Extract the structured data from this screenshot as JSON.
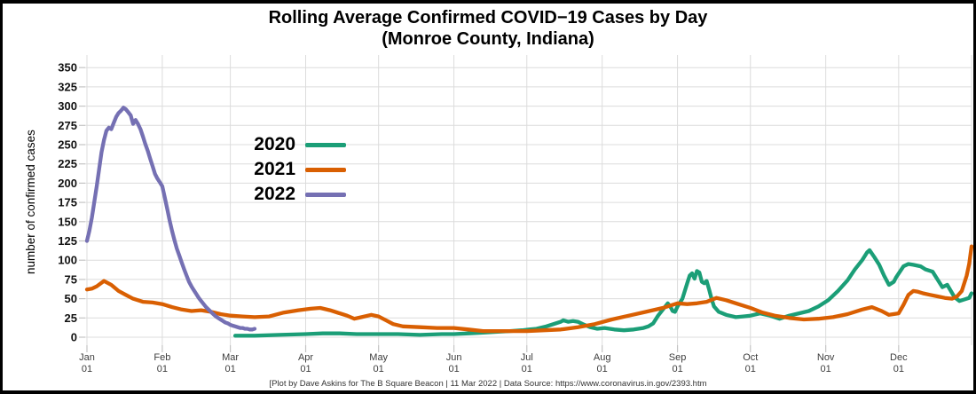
{
  "title": {
    "line1": "Rolling Average Confirmed COVID−19 Cases by Day",
    "line2": "(Monroe County, Indiana)"
  },
  "footer": "[Plot by Dave Askins for The B Square Beacon | 11 Mar 2022 | Data Source: https://www.coronavirus.in.gov/2393.htm",
  "legend": {
    "position": "upper-left-of-plot",
    "entries": [
      "2020",
      "2021",
      "2022"
    ]
  },
  "chart_data": {
    "type": "line",
    "title": "Rolling Average Confirmed COVID−19 Cases by Day (Monroe County, Indiana)",
    "xlabel": "",
    "ylabel": "number of confirmed cases",
    "ylim": [
      0,
      350
    ],
    "yticks": [
      0,
      25,
      50,
      75,
      100,
      125,
      150,
      175,
      200,
      225,
      250,
      275,
      300,
      325,
      350
    ],
    "grid": true,
    "grid_color": "#dcdcdc",
    "tick_color": "#c4c4c4",
    "legend_position": "upper left",
    "x_unit": "day of year",
    "xticks": [
      {
        "label": "Jan",
        "sub": "01",
        "day": 1
      },
      {
        "label": "Feb",
        "sub": "01",
        "day": 32
      },
      {
        "label": "Mar",
        "sub": "01",
        "day": 60
      },
      {
        "label": "Apr",
        "sub": "01",
        "day": 91
      },
      {
        "label": "May",
        "sub": "01",
        "day": 121
      },
      {
        "label": "Jun",
        "sub": "01",
        "day": 152
      },
      {
        "label": "Jul",
        "sub": "01",
        "day": 182
      },
      {
        "label": "Aug",
        "sub": "01",
        "day": 213
      },
      {
        "label": "Sep",
        "sub": "01",
        "day": 244
      },
      {
        "label": "Oct",
        "sub": "01",
        "day": 274
      },
      {
        "label": "Nov",
        "sub": "01",
        "day": 305
      },
      {
        "label": "Dec",
        "sub": "01",
        "day": 335
      }
    ],
    "series": [
      {
        "name": "2020",
        "color": "#1b9e77",
        "points": [
          [
            62,
            2
          ],
          [
            70,
            2
          ],
          [
            80,
            3
          ],
          [
            91,
            4
          ],
          [
            98,
            5
          ],
          [
            105,
            5
          ],
          [
            112,
            4
          ],
          [
            120,
            4
          ],
          [
            129,
            4
          ],
          [
            138,
            3
          ],
          [
            147,
            4
          ],
          [
            152,
            4
          ],
          [
            158,
            5
          ],
          [
            164,
            6
          ],
          [
            170,
            7
          ],
          [
            175,
            8
          ],
          [
            180,
            9
          ],
          [
            183,
            10
          ],
          [
            186,
            11
          ],
          [
            190,
            14
          ],
          [
            193,
            17
          ],
          [
            196,
            20
          ],
          [
            197,
            22
          ],
          [
            199,
            20
          ],
          [
            201,
            21
          ],
          [
            203,
            20
          ],
          [
            205,
            17
          ],
          [
            208,
            13
          ],
          [
            211,
            11
          ],
          [
            214,
            12
          ],
          [
            218,
            10
          ],
          [
            222,
            9
          ],
          [
            226,
            10
          ],
          [
            230,
            12
          ],
          [
            232,
            14
          ],
          [
            234,
            18
          ],
          [
            236,
            28
          ],
          [
            238,
            36
          ],
          [
            240,
            44
          ],
          [
            241,
            40
          ],
          [
            242,
            34
          ],
          [
            243,
            33
          ],
          [
            244,
            40
          ],
          [
            246,
            50
          ],
          [
            248,
            70
          ],
          [
            249,
            80
          ],
          [
            250,
            83
          ],
          [
            251,
            76
          ],
          [
            252,
            86
          ],
          [
            253,
            84
          ],
          [
            254,
            72
          ],
          [
            255,
            70
          ],
          [
            256,
            73
          ],
          [
            257,
            62
          ],
          [
            258,
            50
          ],
          [
            259,
            40
          ],
          [
            261,
            33
          ],
          [
            264,
            29
          ],
          [
            268,
            26
          ],
          [
            271,
            27
          ],
          [
            274,
            28
          ],
          [
            278,
            31
          ],
          [
            282,
            28
          ],
          [
            286,
            24
          ],
          [
            290,
            28
          ],
          [
            294,
            31
          ],
          [
            298,
            34
          ],
          [
            302,
            40
          ],
          [
            306,
            48
          ],
          [
            310,
            60
          ],
          [
            314,
            74
          ],
          [
            317,
            88
          ],
          [
            320,
            100
          ],
          [
            322,
            110
          ],
          [
            323,
            113
          ],
          [
            325,
            104
          ],
          [
            327,
            94
          ],
          [
            329,
            80
          ],
          [
            331,
            68
          ],
          [
            333,
            72
          ],
          [
            334,
            78
          ],
          [
            337,
            92
          ],
          [
            339,
            95
          ],
          [
            341,
            94
          ],
          [
            344,
            92
          ],
          [
            346,
            88
          ],
          [
            349,
            85
          ],
          [
            350,
            80
          ],
          [
            353,
            65
          ],
          [
            355,
            68
          ],
          [
            358,
            52
          ],
          [
            360,
            47
          ],
          [
            362,
            49
          ],
          [
            364,
            51
          ],
          [
            365,
            57
          ]
        ]
      },
      {
        "name": "2021",
        "color": "#d95f02",
        "points": [
          [
            1,
            62
          ],
          [
            3,
            63
          ],
          [
            5,
            66
          ],
          [
            8,
            73
          ],
          [
            11,
            68
          ],
          [
            14,
            60
          ],
          [
            17,
            55
          ],
          [
            20,
            50
          ],
          [
            24,
            46
          ],
          [
            28,
            45
          ],
          [
            32,
            43
          ],
          [
            36,
            39
          ],
          [
            40,
            36
          ],
          [
            44,
            34
          ],
          [
            48,
            35
          ],
          [
            52,
            33
          ],
          [
            56,
            30
          ],
          [
            60,
            28
          ],
          [
            65,
            27
          ],
          [
            70,
            26
          ],
          [
            76,
            27
          ],
          [
            82,
            32
          ],
          [
            88,
            35
          ],
          [
            93,
            37
          ],
          [
            97,
            38
          ],
          [
            101,
            35
          ],
          [
            105,
            31
          ],
          [
            108,
            28
          ],
          [
            111,
            24
          ],
          [
            114,
            26
          ],
          [
            118,
            29
          ],
          [
            121,
            27
          ],
          [
            124,
            22
          ],
          [
            127,
            17
          ],
          [
            131,
            14
          ],
          [
            138,
            13
          ],
          [
            145,
            12
          ],
          [
            152,
            12
          ],
          [
            158,
            10
          ],
          [
            164,
            8
          ],
          [
            172,
            8
          ],
          [
            182,
            8
          ],
          [
            189,
            9
          ],
          [
            196,
            10
          ],
          [
            203,
            13
          ],
          [
            210,
            17
          ],
          [
            217,
            23
          ],
          [
            224,
            28
          ],
          [
            231,
            33
          ],
          [
            238,
            38
          ],
          [
            244,
            44
          ],
          [
            248,
            43
          ],
          [
            252,
            44
          ],
          [
            256,
            46
          ],
          [
            260,
            51
          ],
          [
            264,
            48
          ],
          [
            269,
            43
          ],
          [
            274,
            38
          ],
          [
            279,
            32
          ],
          [
            284,
            28
          ],
          [
            290,
            25
          ],
          [
            296,
            23
          ],
          [
            302,
            24
          ],
          [
            308,
            26
          ],
          [
            314,
            30
          ],
          [
            320,
            36
          ],
          [
            324,
            39
          ],
          [
            328,
            34
          ],
          [
            331,
            29
          ],
          [
            335,
            31
          ],
          [
            337,
            42
          ],
          [
            339,
            55
          ],
          [
            341,
            60
          ],
          [
            343,
            59
          ],
          [
            345,
            57
          ],
          [
            348,
            55
          ],
          [
            351,
            53
          ],
          [
            354,
            51
          ],
          [
            357,
            50
          ],
          [
            359,
            53
          ],
          [
            361,
            60
          ],
          [
            363,
            80
          ],
          [
            364,
            95
          ],
          [
            365,
            118
          ]
        ]
      },
      {
        "name": "2022",
        "color": "#7570b3",
        "points": [
          [
            1,
            125
          ],
          [
            2,
            138
          ],
          [
            3,
            155
          ],
          [
            4,
            175
          ],
          [
            5,
            196
          ],
          [
            6,
            218
          ],
          [
            7,
            240
          ],
          [
            8,
            256
          ],
          [
            9,
            268
          ],
          [
            10,
            272
          ],
          [
            11,
            270
          ],
          [
            12,
            278
          ],
          [
            13,
            286
          ],
          [
            14,
            291
          ],
          [
            15,
            294
          ],
          [
            16,
            298
          ],
          [
            17,
            296
          ],
          [
            18,
            292
          ],
          [
            19,
            288
          ],
          [
            20,
            277
          ],
          [
            21,
            282
          ],
          [
            22,
            277
          ],
          [
            23,
            270
          ],
          [
            24,
            261
          ],
          [
            25,
            251
          ],
          [
            26,
            242
          ],
          [
            27,
            232
          ],
          [
            28,
            222
          ],
          [
            29,
            212
          ],
          [
            30,
            206
          ],
          [
            31,
            201
          ],
          [
            32,
            196
          ],
          [
            33,
            182
          ],
          [
            34,
            167
          ],
          [
            35,
            152
          ],
          [
            36,
            138
          ],
          [
            37,
            126
          ],
          [
            38,
            115
          ],
          [
            39,
            106
          ],
          [
            40,
            97
          ],
          [
            41,
            88
          ],
          [
            42,
            80
          ],
          [
            43,
            72
          ],
          [
            44,
            66
          ],
          [
            45,
            61
          ],
          [
            46,
            56
          ],
          [
            47,
            51
          ],
          [
            48,
            47
          ],
          [
            49,
            43
          ],
          [
            50,
            39
          ],
          [
            51,
            36
          ],
          [
            52,
            33
          ],
          [
            53,
            30
          ],
          [
            54,
            27
          ],
          [
            55,
            25
          ],
          [
            56,
            23
          ],
          [
            57,
            21
          ],
          [
            58,
            19
          ],
          [
            59,
            18
          ],
          [
            60,
            16
          ],
          [
            61,
            15
          ],
          [
            62,
            14
          ],
          [
            63,
            13
          ],
          [
            64,
            12
          ],
          [
            65,
            12
          ],
          [
            66,
            11
          ],
          [
            67,
            11
          ],
          [
            68,
            10
          ],
          [
            69,
            10
          ],
          [
            70,
            11
          ]
        ]
      }
    ]
  }
}
